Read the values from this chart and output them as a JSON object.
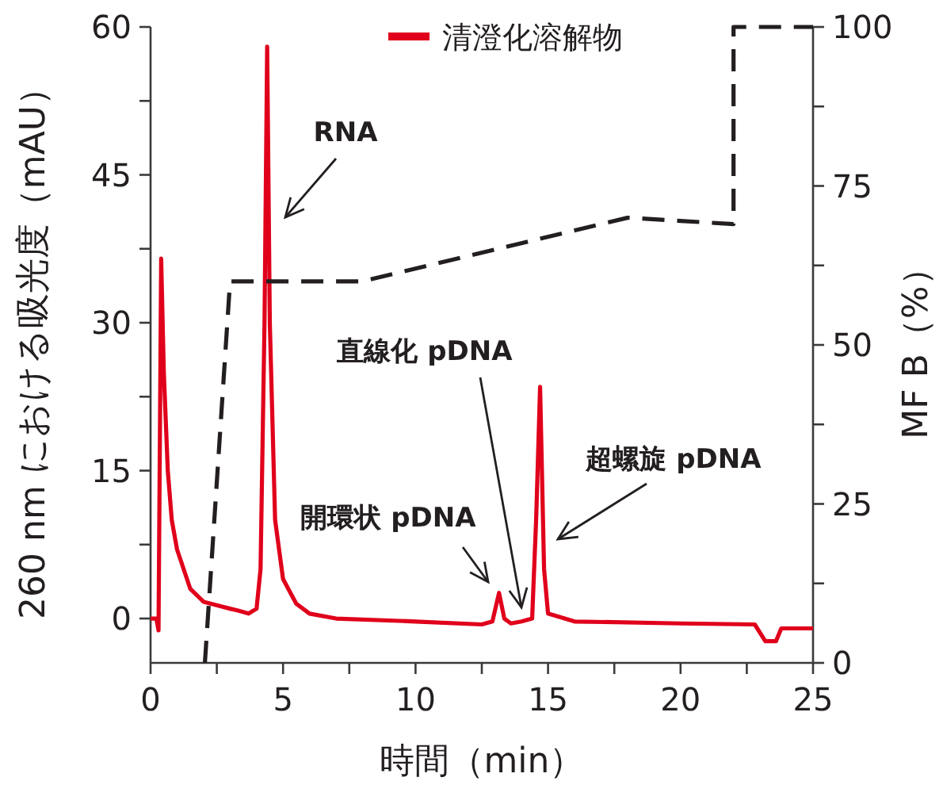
{
  "chart_data": {
    "type": "line",
    "xlabel": "時間（min）",
    "ylabel": "260 nm における吸光度（mAU）",
    "y2label": "MF B（%）",
    "xlim": [
      0,
      25
    ],
    "xticks": [
      0,
      {
        "value": 2.5,
        "label": null
      },
      5,
      {
        "value": 7.5,
        "label": null
      },
      10,
      {
        "value": 12.5,
        "label": null
      },
      15,
      {
        "value": 17.5,
        "label": null
      },
      20,
      {
        "value": 22.5,
        "label": null
      },
      25
    ],
    "ylim": [
      -4.5,
      60
    ],
    "yticks": [
      0,
      {
        "value": 7.5,
        "label": null
      },
      15,
      {
        "value": 22.5,
        "label": null
      },
      30,
      {
        "value": 37.5,
        "label": null
      },
      45,
      {
        "value": 52.5,
        "label": null
      },
      60
    ],
    "y2lim": [
      0,
      100
    ],
    "y2ticks": [
      0,
      {
        "value": 12.5,
        "label": null
      },
      25,
      {
        "value": 37.5,
        "label": null
      },
      50,
      {
        "value": 62.5,
        "label": null
      },
      75,
      {
        "value": 87.5,
        "label": null
      },
      100
    ],
    "legend": "top",
    "series": [
      {
        "name": "清澄化溶解物",
        "color": "#e0001b",
        "line_style": "solid",
        "x": [
          0,
          0.22,
          0.3,
          0.4,
          0.5,
          0.65,
          0.8,
          1,
          1.5,
          2,
          3,
          3.3,
          3.7,
          4.0,
          4.15,
          4.3,
          4.4,
          4.5,
          4.7,
          5,
          5.5,
          6,
          7,
          10,
          12.5,
          12.9,
          13.15,
          13.35,
          13.6,
          14,
          14.4,
          14.55,
          14.7,
          14.85,
          15,
          16,
          20,
          22.8,
          23.2,
          23.6,
          23.8,
          25
        ],
        "values": [
          0,
          0,
          -1.2,
          36.5,
          25,
          15,
          10,
          7,
          3,
          1.7,
          1,
          0.8,
          0.5,
          1,
          5,
          30,
          58,
          30,
          10,
          4,
          1.5,
          0.5,
          0,
          -0.3,
          -0.6,
          -0.3,
          2.6,
          0,
          -0.5,
          -0.3,
          0,
          10,
          23.5,
          5,
          0.5,
          -0.3,
          -0.5,
          -0.6,
          -2.3,
          -2.3,
          -1,
          -1
        ]
      },
      {
        "color": "#231f20",
        "axis": "y2",
        "line_style": "dashed",
        "x": [
          2.05,
          3,
          8,
          18,
          22,
          22,
          25
        ],
        "values": [
          0,
          60,
          60,
          70,
          69,
          100,
          100
        ]
      }
    ],
    "annotations": [
      "RNA",
      "開環状 pDNA",
      "直線化 pDNA",
      "超螺旋 pDNA"
    ]
  }
}
